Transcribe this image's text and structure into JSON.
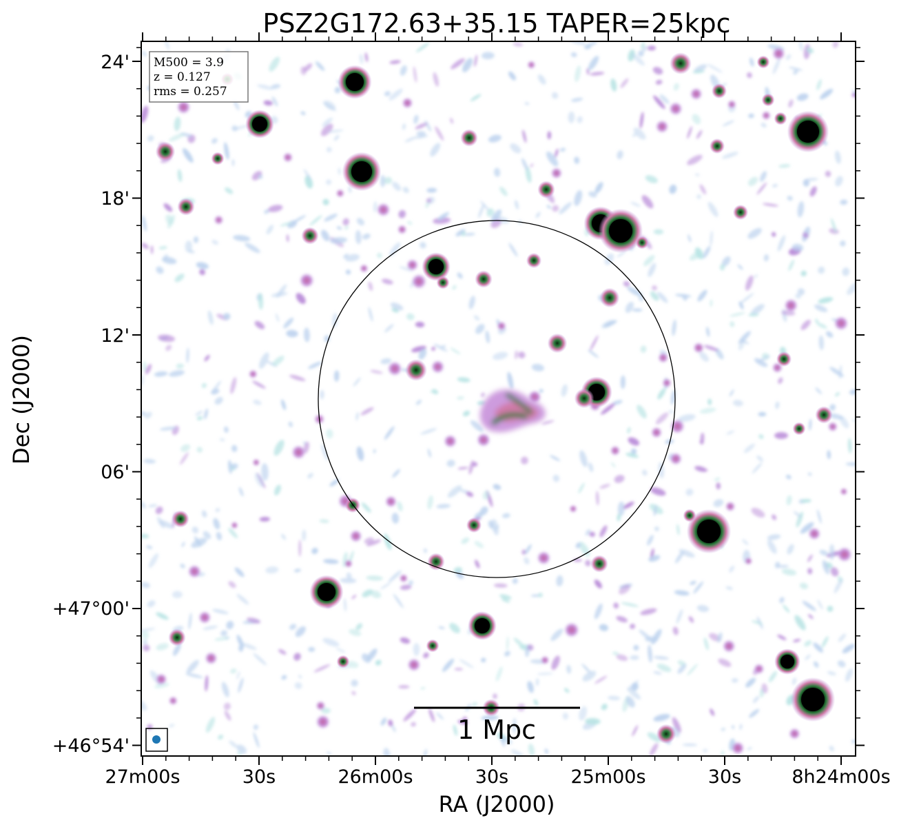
{
  "title": "PSZ2G172.63+35.15 TAPER=25kpc",
  "info_box": {
    "lines": [
      "M500 = 3.9",
      "z = 0.127",
      "rms = 0.257"
    ]
  },
  "axes": {
    "x_label": "RA (J2000)",
    "y_label": "Dec (J2000)",
    "x_ticks": [
      "27m00s",
      "30s",
      "26m00s",
      "30s",
      "25m00s",
      "30s",
      "8h24m00s"
    ],
    "y_ticks": [
      "24'",
      "18'",
      "12'",
      "06'",
      "+47°00'",
      "+46°54'"
    ]
  },
  "scale_bar": {
    "label": "1 Mpc"
  },
  "colors": {
    "noise_light": "#bcd2ee",
    "noise_cyan": "#b8e4e4",
    "noise_purple": "#b88ad8",
    "source_pink": "#d07aa8",
    "source_green": "#2a7a3a",
    "source_core": "#000000",
    "beam": "#1f77b4"
  }
}
